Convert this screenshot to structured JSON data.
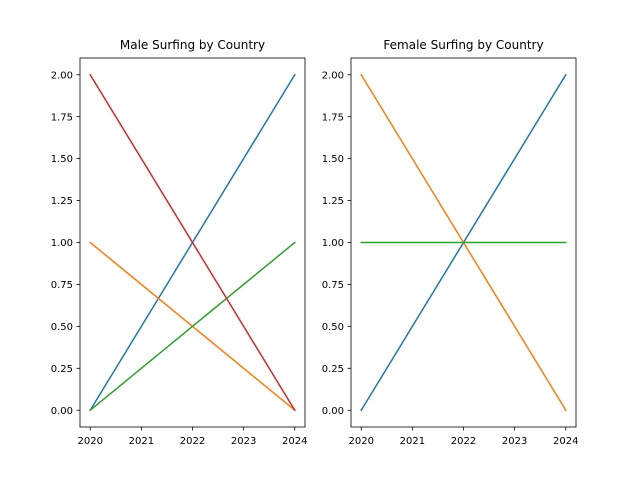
{
  "chart_data": [
    {
      "type": "line",
      "title": "Male Surfing by Country",
      "x": [
        2020,
        2024
      ],
      "xticks": [
        "2020",
        "2021",
        "2022",
        "2023",
        "2024"
      ],
      "yticks": [
        "0.00",
        "0.25",
        "0.50",
        "0.75",
        "1.00",
        "1.25",
        "1.50",
        "1.75",
        "2.00"
      ],
      "xlim": [
        2019.8,
        2024.2
      ],
      "ylim": [
        -0.1,
        2.1
      ],
      "series": [
        {
          "color": "#1f77b4",
          "values": [
            0,
            2
          ]
        },
        {
          "color": "#ff7f0e",
          "values": [
            1,
            0
          ]
        },
        {
          "color": "#2ca02c",
          "values": [
            0,
            1
          ]
        },
        {
          "color": "#d62728",
          "values": [
            2,
            0
          ]
        }
      ],
      "grid": false
    },
    {
      "type": "line",
      "title": "Female Surfing by Country",
      "x": [
        2020,
        2024
      ],
      "xticks": [
        "2020",
        "2021",
        "2022",
        "2023",
        "2024"
      ],
      "yticks": [
        "0.00",
        "0.25",
        "0.50",
        "0.75",
        "1.00",
        "1.25",
        "1.50",
        "1.75",
        "2.00"
      ],
      "xlim": [
        2019.8,
        2024.2
      ],
      "ylim": [
        -0.1,
        2.1
      ],
      "series": [
        {
          "color": "#1f77b4",
          "values": [
            0,
            2
          ]
        },
        {
          "color": "#ff7f0e",
          "values": [
            2,
            0
          ]
        },
        {
          "color": "#2ca02c",
          "values": [
            1,
            1
          ]
        }
      ],
      "grid": false
    }
  ]
}
